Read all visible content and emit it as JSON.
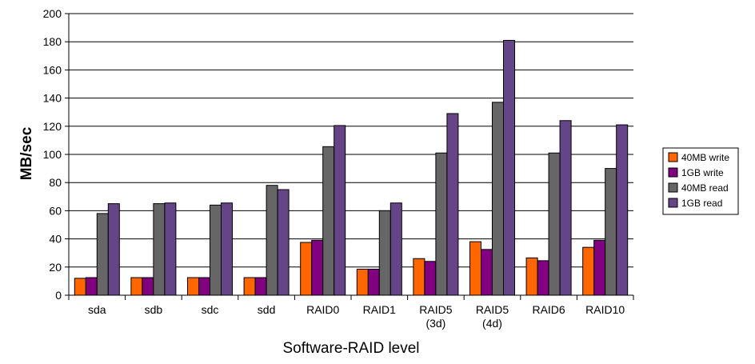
{
  "chart_data": {
    "type": "bar",
    "categories": [
      [
        "sda"
      ],
      [
        "sdb"
      ],
      [
        "sdc"
      ],
      [
        "sdd"
      ],
      [
        "RAID0"
      ],
      [
        "RAID1"
      ],
      [
        "RAID5",
        "(3d)"
      ],
      [
        "RAID5",
        "(4d)"
      ],
      [
        "RAID6"
      ],
      [
        "RAID10"
      ]
    ],
    "series": [
      {
        "name": "40MB write",
        "color": "#ff6600",
        "values": [
          12,
          12.5,
          12.5,
          12.5,
          37.5,
          18.5,
          26,
          38,
          26.5,
          34
        ]
      },
      {
        "name": "1GB write",
        "color": "#800080",
        "values": [
          12.5,
          12.5,
          12.5,
          12.5,
          39,
          18.5,
          24,
          32.5,
          24.5,
          39
        ]
      },
      {
        "name": "40MB read",
        "color": "#666666",
        "values": [
          58,
          65,
          64,
          78,
          105.5,
          60,
          101,
          137,
          101,
          90
        ]
      },
      {
        "name": "1GB read",
        "color": "#664488",
        "values": [
          65,
          65.5,
          65.5,
          75,
          120.5,
          65.5,
          129,
          181,
          124,
          121
        ]
      }
    ],
    "xlabel": "Software-RAID level",
    "ylabel": "MB/sec",
    "ylim": [
      0,
      200
    ],
    "yticks": [
      0,
      20,
      40,
      60,
      80,
      100,
      120,
      140,
      160,
      180,
      200
    ],
    "grid": true,
    "legend_position": "right"
  }
}
